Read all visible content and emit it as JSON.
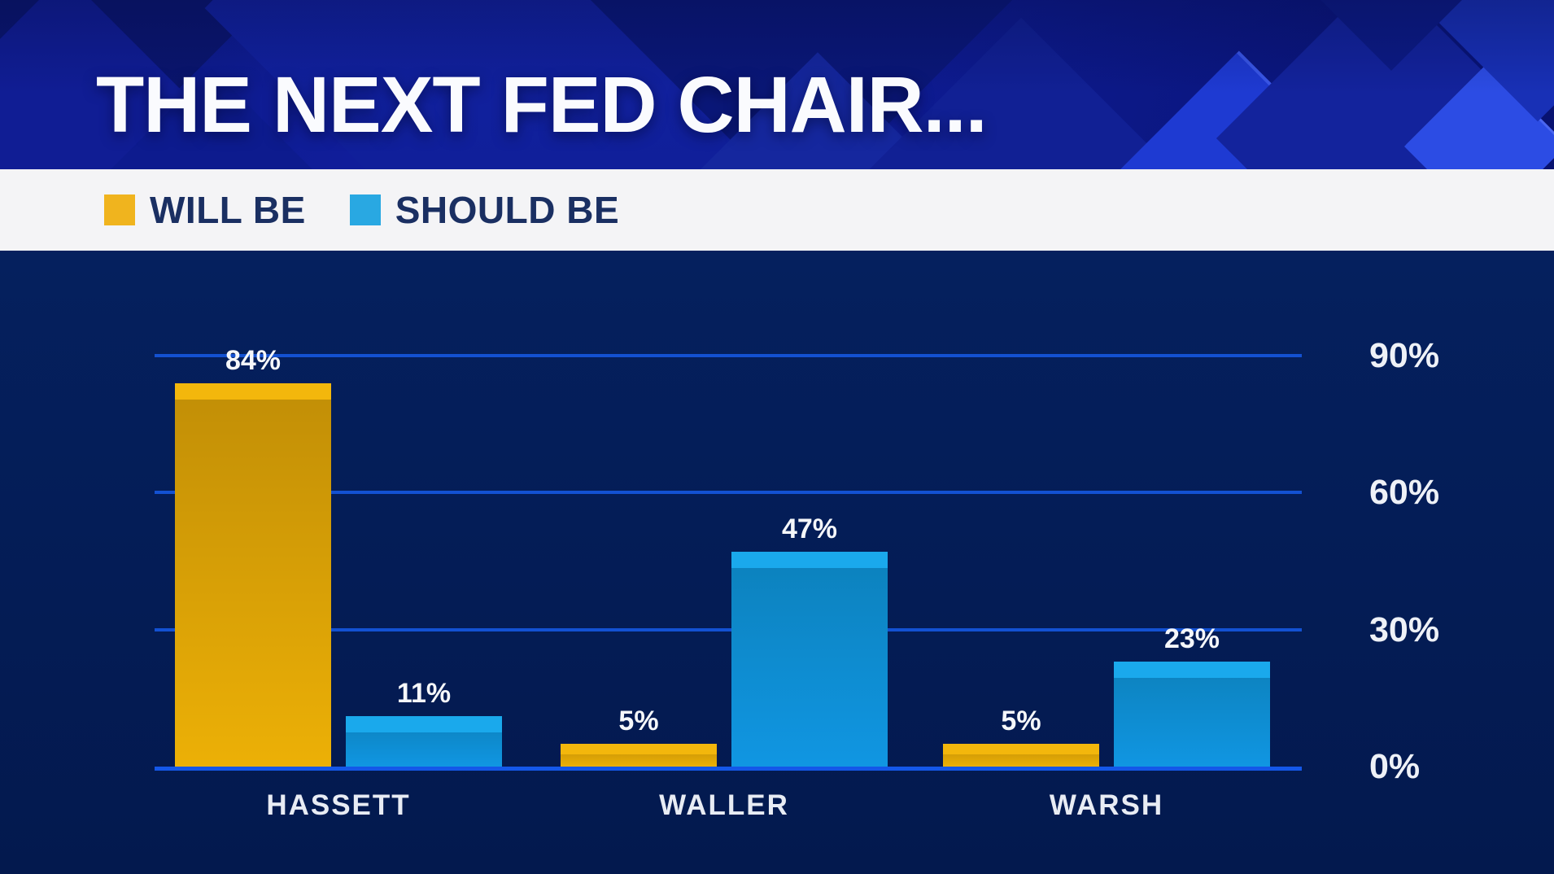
{
  "title": "THE NEXT FED CHAIR...",
  "legend": {
    "items": [
      {
        "label": "WILL BE",
        "color": "#F0B41E"
      },
      {
        "label": "SHOULD BE",
        "color": "#29A8E2"
      }
    ]
  },
  "chart_data": {
    "type": "bar",
    "title": "THE NEXT FED CHAIR...",
    "categories": [
      "HASSETT",
      "WALLER",
      "WARSH"
    ],
    "series": [
      {
        "name": "WILL BE",
        "color": "#F0B40A",
        "values": [
          84,
          5,
          5
        ]
      },
      {
        "name": "SHOULD BE",
        "color": "#14A0E4",
        "values": [
          11,
          47,
          23
        ]
      }
    ],
    "value_labels": [
      [
        "84%",
        "5%",
        "5%"
      ],
      [
        "11%",
        "47%",
        "23%"
      ]
    ],
    "y_axis": {
      "range": [
        0,
        90
      ],
      "ticks": [
        90,
        60,
        30,
        0
      ],
      "tick_labels": [
        "90%",
        "60%",
        "30%",
        "0%"
      ],
      "side": "right"
    },
    "gridlines": true,
    "legend_position": "top-left"
  },
  "colors": {
    "background_navy": "#041C55",
    "header_blue": "#121FA4",
    "gridline_blue": "#1351D2",
    "baseline_blue": "#1457E8",
    "bar_yellow_cap": "#F3B70C",
    "bar_yellow_body": "#D99F06",
    "bar_blue_cap": "#1AA9EC",
    "bar_blue_body": "#0E8CCF",
    "legend_band": "#F4F4F6",
    "legend_text_navy": "#1A2F62",
    "label_white": "#F5F7FA"
  }
}
